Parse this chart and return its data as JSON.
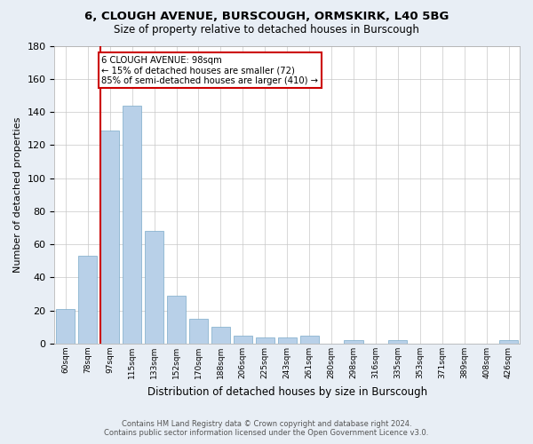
{
  "title1": "6, CLOUGH AVENUE, BURSCOUGH, ORMSKIRK, L40 5BG",
  "title2": "Size of property relative to detached houses in Burscough",
  "xlabel": "Distribution of detached houses by size in Burscough",
  "ylabel": "Number of detached properties",
  "categories": [
    "60sqm",
    "78sqm",
    "97sqm",
    "115sqm",
    "133sqm",
    "152sqm",
    "170sqm",
    "188sqm",
    "206sqm",
    "225sqm",
    "243sqm",
    "261sqm",
    "280sqm",
    "298sqm",
    "316sqm",
    "335sqm",
    "353sqm",
    "371sqm",
    "389sqm",
    "408sqm",
    "426sqm"
  ],
  "values": [
    21,
    53,
    129,
    144,
    68,
    29,
    15,
    10,
    5,
    4,
    4,
    5,
    0,
    2,
    0,
    2,
    0,
    0,
    0,
    0,
    2
  ],
  "bar_color": "#b8d0e8",
  "bar_edge_color": "#7aaac8",
  "redline_index": 2,
  "annotation_text": "6 CLOUGH AVENUE: 98sqm\n← 15% of detached houses are smaller (72)\n85% of semi-detached houses are larger (410) →",
  "annotation_box_color": "#ffffff",
  "annotation_box_edge": "#cc0000",
  "redline_color": "#cc0000",
  "ylim": [
    0,
    180
  ],
  "yticks": [
    0,
    20,
    40,
    60,
    80,
    100,
    120,
    140,
    160,
    180
  ],
  "footer1": "Contains HM Land Registry data © Crown copyright and database right 2024.",
  "footer2": "Contains public sector information licensed under the Open Government Licence v3.0.",
  "bg_color": "#e8eef5",
  "plot_bg_color": "#ffffff",
  "grid_color": "#c8c8c8"
}
